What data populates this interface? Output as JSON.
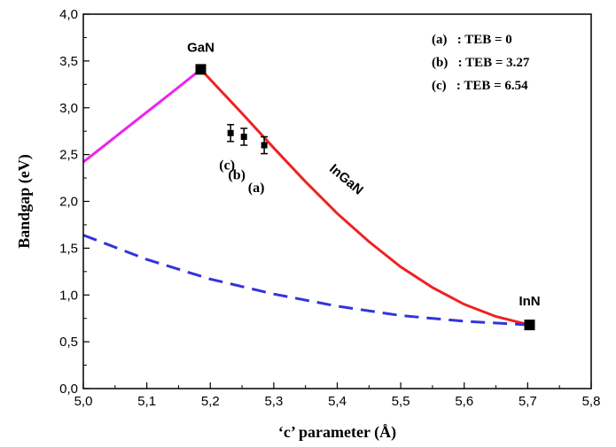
{
  "chart_data": {
    "type": "line",
    "title": "",
    "xlabel": "‘c’ parameter (Å)",
    "ylabel": "Bandgap (eV)",
    "xlim": [
      5.0,
      5.8
    ],
    "ylim": [
      0.0,
      4.0
    ],
    "x_ticks": [
      "5,0",
      "5,1",
      "5,2",
      "5,3",
      "5,4",
      "5,5",
      "5,6",
      "5,7",
      "5,8"
    ],
    "y_ticks": [
      "0,0",
      "0,5",
      "1,0",
      "1,5",
      "2,0",
      "2,5",
      "3,0",
      "3,5",
      "4,0"
    ],
    "grid": false,
    "series": [
      {
        "color": "#ee22ee",
        "style": "solid",
        "x": [
          5.0,
          5.03,
          5.06,
          5.09,
          5.12,
          5.15,
          5.185
        ],
        "y": [
          2.42,
          2.58,
          2.74,
          2.9,
          3.06,
          3.22,
          3.41
        ]
      },
      {
        "name": "InGaN",
        "color": "#ee2222",
        "style": "solid",
        "x": [
          5.185,
          5.25,
          5.3,
          5.35,
          5.4,
          5.45,
          5.5,
          5.55,
          5.6,
          5.65,
          5.703
        ],
        "y": [
          3.41,
          2.94,
          2.57,
          2.21,
          1.87,
          1.57,
          1.3,
          1.08,
          0.9,
          0.77,
          0.68
        ]
      },
      {
        "color": "#3333dd",
        "style": "dashed",
        "x": [
          5.0,
          5.1,
          5.2,
          5.3,
          5.4,
          5.5,
          5.6,
          5.703
        ],
        "y": [
          1.64,
          1.38,
          1.17,
          1.01,
          0.88,
          0.78,
          0.72,
          0.68
        ]
      }
    ],
    "endpoints": [
      {
        "label": "GaN",
        "x": 5.185,
        "y": 3.41
      },
      {
        "label": "InN",
        "x": 5.703,
        "y": 0.68
      }
    ],
    "data_points": [
      {
        "label": "(c)",
        "x": 5.232,
        "y": 2.73,
        "err": 0.09
      },
      {
        "label": "(b)",
        "x": 5.253,
        "y": 2.69,
        "err": 0.09
      },
      {
        "label": "(a)",
        "x": 5.285,
        "y": 2.6,
        "err": 0.09
      }
    ],
    "curve_label": {
      "text": "InGaN",
      "x": 5.41,
      "y": 2.2
    },
    "legend": {
      "position": "top-right",
      "entries": [
        "(a)   : TEB = 0",
        "(b)   : TEB = 3.27",
        "(c)   : TEB = 6.54"
      ]
    }
  }
}
